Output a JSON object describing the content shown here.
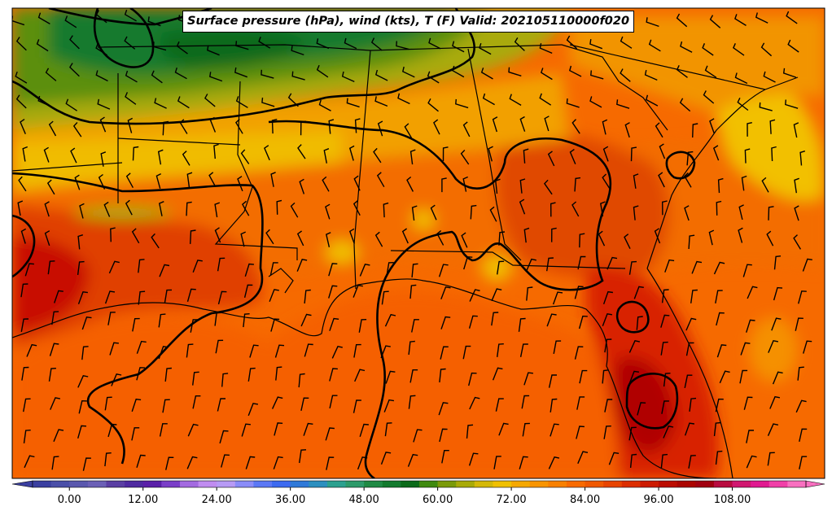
{
  "title": "Surface pressure (hPa), wind (kts), T (F) Valid: 202105110000f020",
  "colorbar": {
    "ticks": [
      "0.00",
      "12.00",
      "24.00",
      "36.00",
      "48.00",
      "60.00",
      "72.00",
      "84.00",
      "96.00",
      "108.00"
    ],
    "min": -6,
    "max": 120,
    "step": 3,
    "colors": [
      "#3a3fa0",
      "#4a4fa8",
      "#5a58ae",
      "#6b60b6",
      "#5a3fa3",
      "#4f2aa0",
      "#5a1fa8",
      "#7a3ec8",
      "#a36ae0",
      "#c08cf0",
      "#b79af5",
      "#8a8cf8",
      "#5b78f5",
      "#3d6af0",
      "#2f79d8",
      "#2c8fbf",
      "#2ca08f",
      "#2d9a6a",
      "#1f8a44",
      "#137a2e",
      "#0b6a1a",
      "#3f8a10",
      "#7a9a0a",
      "#a8aa08",
      "#d4b808",
      "#f0c000",
      "#f5a800",
      "#f89400",
      "#f88000",
      "#f86a00",
      "#f05800",
      "#e84400",
      "#dc2e00",
      "#cc1a00",
      "#bb0c00",
      "#aa0400",
      "#a00010",
      "#b80c40",
      "#d01870",
      "#e01a90",
      "#f040a8",
      "#f870c0"
    ]
  },
  "map": {
    "field": "surface temperature (F) with pressure contours and wind barbs",
    "region": "Southeastern United States and northern Gulf of Mexico"
  }
}
